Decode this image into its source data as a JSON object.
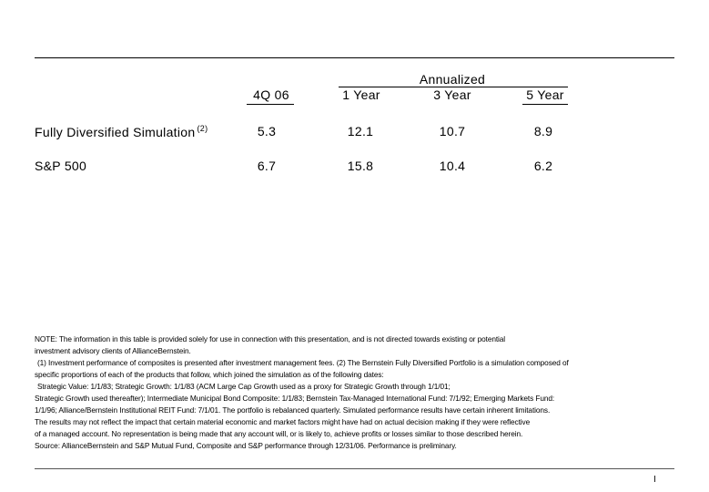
{
  "table": {
    "group_header": "Annualized",
    "columns": [
      "4Q 06",
      "1 Year",
      "3 Year",
      "5 Year"
    ],
    "rows": [
      {
        "label": "Fully Diversified Simulation",
        "footnote": "(2)",
        "values": [
          "5.3",
          "12.1",
          "10.7",
          "8.9"
        ]
      },
      {
        "label": "S&P 500",
        "footnote": "",
        "values": [
          "6.7",
          "15.8",
          "10.4",
          "6.2"
        ]
      }
    ]
  },
  "notes": [
    "NOTE: The information in this table is provided solely for use in connection with this presentation, and is not directed towards existing or potential",
    "investment advisory clients of AllianceBernstein.",
    "(1) Investment performance of composites is presented after investment management fees. (2) The Bernstein Fully Diversified Portfolio is a simulation composed of",
    "specific proportions of each of the products that follow, which joined the simulation as of the following dates:",
    "Strategic Value: 1/1/83; Strategic Growth: 1/1/83 (ACM Large Cap Growth used as a proxy for Strategic Growth through 1/1/01;",
    "Strategic Growth used thereafter); Intermediate Municipal Bond Composite: 1/1/83; Bernstein Tax-Managed International Fund: 7/1/92; Emerging Markets Fund:",
    "1/1/96; Alliance/Bernstein Institutional REIT Fund: 7/1/01. The portfolio is rebalanced quarterly. Simulated performance results have certain inherent limitations.",
    "The results may not reflect the impact that certain material economic and market factors might have had on actual decision making if they were reflective",
    "of a managed account. No representation is being made that any account will, or is likely to, achieve profits or losses similar to those described herein.",
    "Source: AllianceBernstein and S&P Mutual Fund, Composite and S&P performance through 12/31/06. Performance is preliminary."
  ],
  "page_number": "I"
}
